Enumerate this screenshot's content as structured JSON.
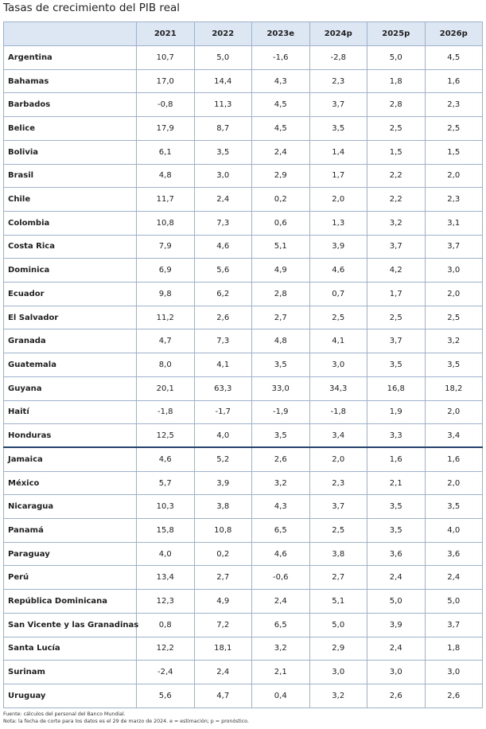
{
  "title": "Tasas de crecimiento del PIB real",
  "columns": [
    "2021",
    "2022",
    "2023e",
    "2024p",
    "2025p",
    "2026p"
  ],
  "rows": [
    {
      "country": "Argentina",
      "values": [
        "10,7",
        "5,0",
        "-1,6",
        "-2,8",
        "5,0",
        "4,5"
      ]
    },
    {
      "country": "Bahamas",
      "values": [
        "17,0",
        "14,4",
        "4,3",
        "2,3",
        "1,8",
        "1,6"
      ]
    },
    {
      "country": "Barbados",
      "values": [
        "-0,8",
        "11,3",
        "4,5",
        "3,7",
        "2,8",
        "2,3"
      ]
    },
    {
      "country": "Belice",
      "values": [
        "17,9",
        "8,7",
        "4,5",
        "3,5",
        "2,5",
        "2,5"
      ]
    },
    {
      "country": "Bolivia",
      "values": [
        "6,1",
        "3,5",
        "2,4",
        "1,4",
        "1,5",
        "1,5"
      ]
    },
    {
      "country": "Brasil",
      "values": [
        "4,8",
        "3,0",
        "2,9",
        "1,7",
        "2,2",
        "2,0"
      ]
    },
    {
      "country": "Chile",
      "values": [
        "11,7",
        "2,4",
        "0,2",
        "2,0",
        "2,2",
        "2,3"
      ]
    },
    {
      "country": "Colombia",
      "values": [
        "10,8",
        "7,3",
        "0,6",
        "1,3",
        "3,2",
        "3,1"
      ]
    },
    {
      "country": "Costa Rica",
      "values": [
        "7,9",
        "4,6",
        "5,1",
        "3,9",
        "3,7",
        "3,7"
      ]
    },
    {
      "country": "Dominica",
      "values": [
        "6,9",
        "5,6",
        "4,9",
        "4,6",
        "4,2",
        "3,0"
      ]
    },
    {
      "country": "Ecuador",
      "values": [
        "9,8",
        "6,2",
        "2,8",
        "0,7",
        "1,7",
        "2,0"
      ]
    },
    {
      "country": "El Salvador",
      "values": [
        "11,2",
        "2,6",
        "2,7",
        "2,5",
        "2,5",
        "2,5"
      ]
    },
    {
      "country": "Granada",
      "values": [
        "4,7",
        "7,3",
        "4,8",
        "4,1",
        "3,7",
        "3,2"
      ]
    },
    {
      "country": "Guatemala",
      "values": [
        "8,0",
        "4,1",
        "3,5",
        "3,0",
        "3,5",
        "3,5"
      ]
    },
    {
      "country": "Guyana",
      "values": [
        "20,1",
        "63,3",
        "33,0",
        "34,3",
        "16,8",
        "18,2"
      ]
    },
    {
      "country": "Haití",
      "values": [
        "-1,8",
        "-1,7",
        "-1,9",
        "-1,8",
        "1,9",
        "2,0"
      ]
    },
    {
      "country": "Honduras",
      "values": [
        "12,5",
        "4,0",
        "3,5",
        "3,4",
        "3,3",
        "3,4"
      ]
    },
    {
      "country": "Jamaica",
      "values": [
        "4,6",
        "5,2",
        "2,6",
        "2,0",
        "1,6",
        "1,6"
      ]
    },
    {
      "country": "México",
      "values": [
        "5,7",
        "3,9",
        "3,2",
        "2,3",
        "2,1",
        "2,0"
      ]
    },
    {
      "country": "Nicaragua",
      "values": [
        "10,3",
        "3,8",
        "4,3",
        "3,7",
        "3,5",
        "3,5"
      ]
    },
    {
      "country": "Panamá",
      "values": [
        "15,8",
        "10,8",
        "6,5",
        "2,5",
        "3,5",
        "4,0"
      ]
    },
    {
      "country": "Paraguay",
      "values": [
        "4,0",
        "0,2",
        "4,6",
        "3,8",
        "3,6",
        "3,6"
      ]
    },
    {
      "country": "Perú",
      "values": [
        "13,4",
        "2,7",
        "-0,6",
        "2,7",
        "2,4",
        "2,4"
      ]
    },
    {
      "country": "República Dominicana",
      "values": [
        "12,3",
        "4,9",
        "2,4",
        "5,1",
        "5,0",
        "5,0"
      ]
    },
    {
      "country": "San Vicente y las Granadinas",
      "values": [
        "0,8",
        "7,2",
        "6,5",
        "5,0",
        "3,9",
        "3,7"
      ]
    },
    {
      "country": "Santa Lucía",
      "values": [
        "12,2",
        "18,1",
        "3,2",
        "2,9",
        "2,4",
        "1,8"
      ]
    },
    {
      "country": "Surinam",
      "values": [
        "-2,4",
        "2,4",
        "2,1",
        "3,0",
        "3,0",
        "3,0"
      ]
    },
    {
      "country": "Uruguay",
      "values": [
        "5,6",
        "4,7",
        "0,4",
        "3,2",
        "2,6",
        "2,6"
      ]
    }
  ],
  "notes": {
    "source": "Fuente: cálculos del personal del Banco Mundial.",
    "note": "Nota: la fecha de corte para los datos es el 29 de marzo de 2024. e = estimación; p = pronóstico."
  }
}
